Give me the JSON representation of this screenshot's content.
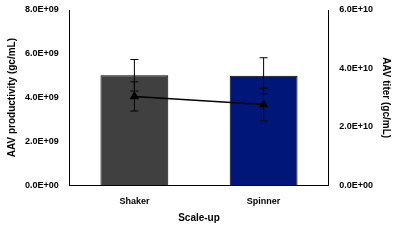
{
  "chart_data": {
    "type": "bar",
    "categories": [
      "Shaker",
      "Spinner"
    ],
    "xlabel": "Scale-up",
    "ylabel": "AAV productivity (gc/mL)",
    "y2label": "AAV titer (gc/mL)",
    "ylim": [
      0,
      8000000000
    ],
    "yticks": [
      {
        "value": 0,
        "label": "0.0E+00"
      },
      {
        "value": 2000000000,
        "label": "2.0E+09"
      },
      {
        "value": 4000000000,
        "label": "4.0E+09"
      },
      {
        "value": 6000000000,
        "label": "6.0E+09"
      },
      {
        "value": 8000000000,
        "label": "8.0E+09"
      }
    ],
    "y2lim": [
      0,
      60000000000
    ],
    "y2ticks": [
      {
        "value": 0,
        "label": "0.0E+00"
      },
      {
        "value": 20000000000,
        "label": "2.0E+10"
      },
      {
        "value": 40000000000,
        "label": "4.0E+10"
      },
      {
        "value": 60000000000,
        "label": "6.0E+10"
      }
    ],
    "grid": false,
    "series": [
      {
        "type": "bar",
        "colors": [
          "#404040",
          "#00177a"
        ],
        "values": [
          5020000000,
          5000000000
        ],
        "errors": [
          720000000,
          820000000
        ]
      },
      {
        "type": "line",
        "axis": "y2",
        "color": "#000000",
        "marker": "triangle",
        "line_style": "solid",
        "values": [
          30400000000,
          27600000000
        ],
        "errors": [
          5000000000,
          5600000000
        ]
      }
    ]
  }
}
